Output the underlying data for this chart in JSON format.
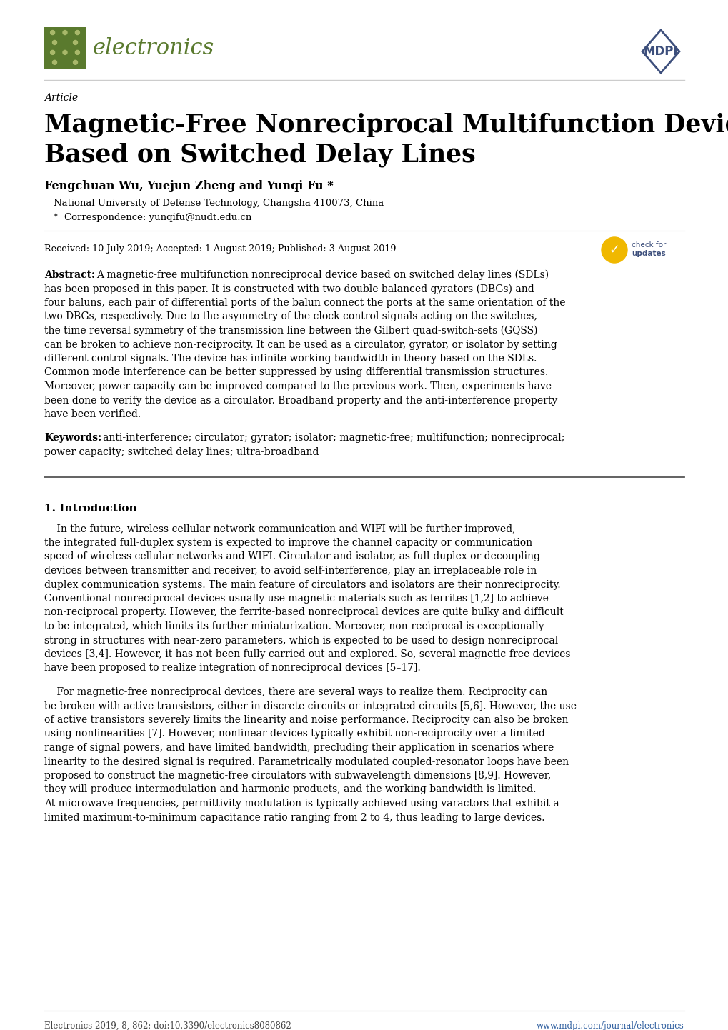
{
  "bg_color": "#ffffff",
  "journal_name": "electronics",
  "article_label": "Article",
  "title_line1": "Magnetic-Free Nonreciprocal Multifunction Device",
  "title_line2": "Based on Switched Delay Lines",
  "authors": "Fengchuan Wu, Yuejun Zheng and Yunqi Fu *",
  "affiliation": "National University of Defense Technology, Changsha 410073, China",
  "correspondence": "*  Correspondence: yunqifu@nudt.edu.cn",
  "received": "Received: 10 July 2019; Accepted: 1 August 2019; Published: 3 August 2019",
  "abstract_label": "Abstract:",
  "abstract_body": "A magnetic-free multifunction nonreciprocal device based on switched delay lines (SDLs)\nhas been proposed in this paper. It is constructed with two double balanced gyrators (DBGs) and\nfour baluns, each pair of differential ports of the balun connect the ports at the same orientation of the\ntwo DBGs, respectively. Due to the asymmetry of the clock control signals acting on the switches,\nthe time reversal symmetry of the transmission line between the Gilbert quad-switch-sets (GQSS)\ncan be broken to achieve non-reciprocity. It can be used as a circulator, gyrator, or isolator by setting\ndifferent control signals. The device has infinite working bandwidth in theory based on the SDLs.\nCommon mode interference can be better suppressed by using differential transmission structures.\nMoreover, power capacity can be improved compared to the previous work. Then, experiments have\nbeen done to verify the device as a circulator. Broadband property and the anti-interference property\nhave been verified.",
  "keywords_label": "Keywords:",
  "keywords_body": "anti-interference; circulator; gyrator; isolator; magnetic-free; multifunction; nonreciprocal;\npower capacity; switched delay lines; ultra-broadband",
  "section1_title": "1. Introduction",
  "p1_lines": [
    "    In the future, wireless cellular network communication and WIFI will be further improved,",
    "the integrated full-duplex system is expected to improve the channel capacity or communication",
    "speed of wireless cellular networks and WIFI. Circulator and isolator, as full-duplex or decoupling",
    "devices between transmitter and receiver, to avoid self-interference, play an irreplaceable role in",
    "duplex communication systems. The main feature of circulators and isolators are their nonreciprocity.",
    "Conventional nonreciprocal devices usually use magnetic materials such as ferrites [1,2] to achieve",
    "non-reciprocal property. However, the ferrite-based nonreciprocal devices are quite bulky and difficult",
    "to be integrated, which limits its further miniaturization. Moreover, non-reciprocal is exceptionally",
    "strong in structures with near-zero parameters, which is expected to be used to design nonreciprocal",
    "devices [3,4]. However, it has not been fully carried out and explored. So, several magnetic-free devices",
    "have been proposed to realize integration of nonreciprocal devices [5–17]."
  ],
  "p2_lines": [
    "    For magnetic-free nonreciprocal devices, there are several ways to realize them. Reciprocity can",
    "be broken with active transistors, either in discrete circuits or integrated circuits [5,6]. However, the use",
    "of active transistors severely limits the linearity and noise performance. Reciprocity can also be broken",
    "using nonlinearities [7]. However, nonlinear devices typically exhibit non-reciprocity over a limited",
    "range of signal powers, and have limited bandwidth, precluding their application in scenarios where",
    "linearity to the desired signal is required. Parametrically modulated coupled-resonator loops have been",
    "proposed to construct the magnetic-free circulators with subwavelength dimensions [8,9]. However,",
    "they will produce intermodulation and harmonic products, and the working bandwidth is limited.",
    "At microwave frequencies, permittivity modulation is typically achieved using varactors that exhibit a",
    "limited maximum-to-minimum capacitance ratio ranging from 2 to 4, thus leading to large devices."
  ],
  "footer_left": "Electronics 2019, 8, 862; doi:10.3390/electronics8080862",
  "footer_right": "www.mdpi.com/journal/electronics",
  "logo_color": "#5a7a2e",
  "mdpi_color": "#3d4f7c",
  "link_color": "#3060a0"
}
